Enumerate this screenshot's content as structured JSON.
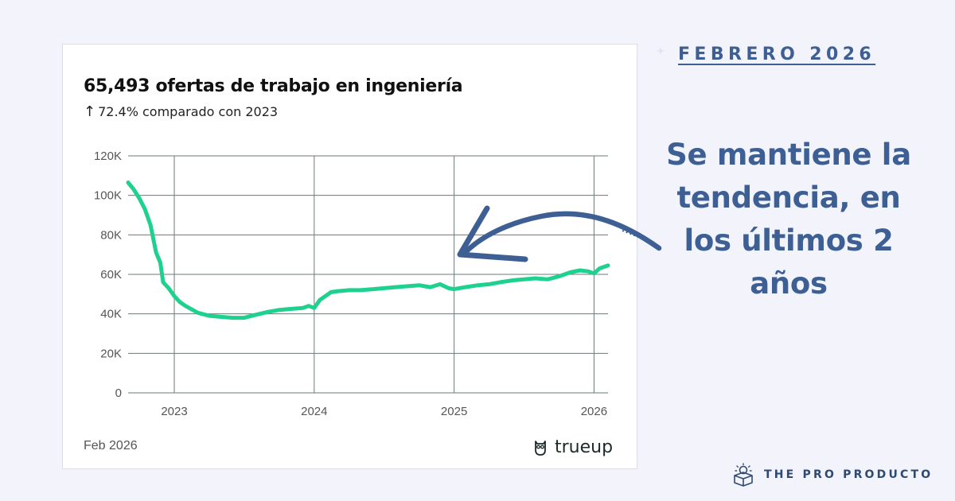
{
  "card": {
    "title": "65,493 ofertas de trabajo en ingeniería",
    "subtitle_arrow": "↑",
    "subtitle": "72.4% comparado con 2023",
    "date": "Feb 2026",
    "brand": "trueup"
  },
  "side": {
    "date_badge": "FEBRERO 2026",
    "headline": "Se mantiene la tendencia, en los últimos 2 años",
    "footer_brand": "THE PRO PRODUCTO"
  },
  "colors": {
    "line": "#1fd18e",
    "accent": "#3d5f93",
    "grid": "#6b7a7a"
  },
  "chart_data": {
    "type": "line",
    "title": "65,493 ofertas de trabajo en ingeniería",
    "xlabel": "",
    "ylabel": "",
    "ylim": [
      0,
      120000
    ],
    "xlim": [
      2022.67,
      2026.1
    ],
    "y_ticks": [
      {
        "value": 0,
        "label": "0"
      },
      {
        "value": 20000,
        "label": "20K"
      },
      {
        "value": 40000,
        "label": "40K"
      },
      {
        "value": 60000,
        "label": "60K"
      },
      {
        "value": 80000,
        "label": "80K"
      },
      {
        "value": 100000,
        "label": "100K"
      },
      {
        "value": 120000,
        "label": "120K"
      }
    ],
    "x_ticks": [
      {
        "value": 2023,
        "label": "2023"
      },
      {
        "value": 2024,
        "label": "2024"
      },
      {
        "value": 2025,
        "label": "2025"
      },
      {
        "value": 2026,
        "label": "2026"
      }
    ],
    "grid": true,
    "x": [
      2022.67,
      2022.71,
      2022.75,
      2022.79,
      2022.83,
      2022.87,
      2022.9,
      2022.92,
      2022.96,
      2023.0,
      2023.04,
      2023.08,
      2023.17,
      2023.25,
      2023.33,
      2023.42,
      2023.5,
      2023.58,
      2023.67,
      2023.75,
      2023.83,
      2023.92,
      2023.96,
      2024.0,
      2024.04,
      2024.08,
      2024.12,
      2024.17,
      2024.25,
      2024.33,
      2024.42,
      2024.5,
      2024.58,
      2024.67,
      2024.75,
      2024.83,
      2024.9,
      2024.96,
      2025.0,
      2025.08,
      2025.17,
      2025.25,
      2025.33,
      2025.42,
      2025.5,
      2025.58,
      2025.67,
      2025.75,
      2025.83,
      2025.9,
      2025.96,
      2026.0,
      2026.04,
      2026.1
    ],
    "series": [
      {
        "values": [
          106500,
          103000,
          98500,
          93000,
          85000,
          71000,
          66000,
          56000,
          53000,
          49000,
          46000,
          44000,
          40500,
          39000,
          38500,
          38000,
          38000,
          39500,
          41000,
          42000,
          42500,
          43000,
          44000,
          43000,
          47000,
          49000,
          51000,
          51500,
          52000,
          52000,
          52500,
          53000,
          53500,
          54000,
          54500,
          53500,
          55000,
          53000,
          52500,
          53500,
          54500,
          55000,
          56000,
          57000,
          57500,
          58000,
          57500,
          59000,
          61000,
          62000,
          61500,
          60500,
          63000,
          64500
        ]
      }
    ]
  }
}
